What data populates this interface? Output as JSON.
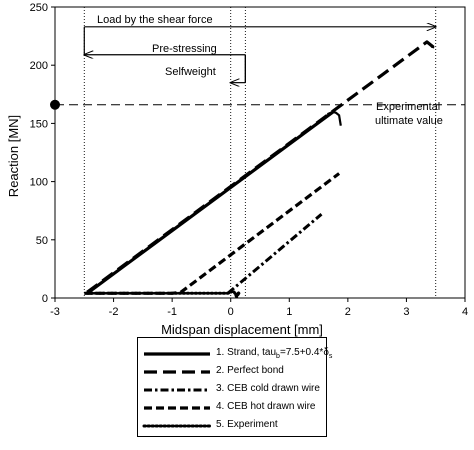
{
  "chart_data": {
    "type": "line",
    "xlabel": "Midspan displacement  [mm]",
    "ylabel": "Reaction [MN]",
    "xlim": [
      -3,
      4
    ],
    "ylim": [
      0,
      250
    ],
    "xticks": [
      "-3",
      "-2",
      "-1",
      "0",
      "1",
      "2",
      "3",
      "4"
    ],
    "yticks": [
      "0",
      "50",
      "100",
      "150",
      "200",
      "250"
    ],
    "grid": false,
    "legend_position": "below-plot",
    "series": [
      {
        "name": "1. Strand, tau",
        "name_suffix": "=7.5+0.4*",
        "name_sub1": "b",
        "name_sub2": "s",
        "delta_glyph": "δ",
        "style": "solid",
        "x": [
          -2.45,
          1.75
        ],
        "y": [
          4,
          160
        ]
      },
      {
        "name": "2. Perfect bond",
        "style": "long-dash",
        "x": [
          -2.45,
          3.35,
          3.45,
          3.43
        ],
        "y": [
          5,
          220,
          216,
          212
        ]
      },
      {
        "name": "3. CEB cold drawn wire",
        "style": "dash-dot",
        "x": [
          -0.05,
          1.55
        ],
        "y": [
          4,
          72
        ]
      },
      {
        "name": "4. CEB hot drawn wire",
        "style": "dash",
        "x": [
          -2.5,
          -1.0,
          -0.85,
          1.85
        ],
        "y": [
          4,
          4,
          5,
          107
        ]
      },
      {
        "name": "5. Experiment",
        "style": "dotted",
        "x": [
          -2.45,
          -0.05,
          0.05,
          0.1,
          0.15,
          0.1
        ],
        "y": [
          4,
          4,
          6,
          1,
          5,
          3
        ]
      },
      {
        "name": "Experimental ultimate value",
        "style": "dashed-horizontal",
        "x": [
          -3,
          4
        ],
        "y": [
          166,
          166
        ]
      }
    ],
    "extra_curves": {
      "strand_peak": {
        "x": [
          1.65,
          1.75,
          1.8,
          1.85,
          1.88
        ],
        "y": [
          158,
          160,
          159,
          157,
          148
        ]
      }
    },
    "vertical_reference_lines": [
      -2.5,
      0,
      0.25,
      3.5
    ],
    "annotations": {
      "load_shear": "Load by the shear force",
      "prestressing": "Pre-stressing",
      "selfweight": "Selfweight",
      "experimental_line1": "Experimental",
      "experimental_line2": "ultimate value"
    },
    "arrows": [
      {
        "label_key": "load_shear",
        "from_x": -2.5,
        "to_x": 3.5,
        "y": 233,
        "top": 233,
        "bottom": 208
      },
      {
        "label_key": "prestressing",
        "from_x": 0.25,
        "to_x": -2.5,
        "y": 209,
        "top": 209,
        "bottom": 185
      },
      {
        "label_key": "selfweight",
        "from_x": 0.25,
        "to_x": 0.0,
        "y": 185,
        "top": 209,
        "bottom": 185
      }
    ],
    "marker": {
      "x": -3,
      "y": 166,
      "shape": "filled-circle"
    }
  }
}
